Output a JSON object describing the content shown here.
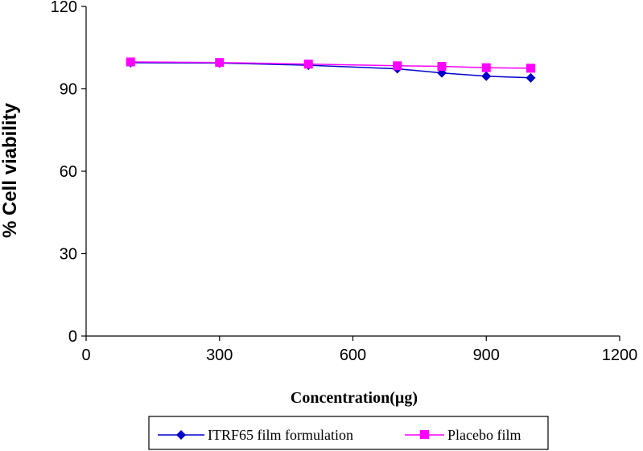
{
  "chart_data": {
    "type": "line",
    "xlabel": "Concentration(µg)",
    "ylabel": "% Cell viability",
    "xlim": [
      0,
      1200
    ],
    "ylim": [
      0,
      120
    ],
    "xticks": [
      0,
      300,
      600,
      900,
      1200
    ],
    "yticks": [
      0,
      30,
      60,
      90,
      120
    ],
    "grid": false,
    "legend_position": "bottom",
    "series": [
      {
        "name": "ITRF65 film formulation",
        "color": "#0000cc",
        "marker": "diamond",
        "x": [
          100,
          300,
          500,
          700,
          800,
          900,
          1000
        ],
        "y": [
          99.5,
          99.4,
          98.6,
          97.3,
          95.8,
          94.6,
          94.0
        ]
      },
      {
        "name": "Placebo film",
        "color": "#ff00ff",
        "marker": "square",
        "x": [
          100,
          300,
          500,
          700,
          800,
          900,
          1000
        ],
        "y": [
          99.8,
          99.6,
          99.0,
          98.4,
          98.2,
          97.7,
          97.5
        ]
      }
    ]
  }
}
